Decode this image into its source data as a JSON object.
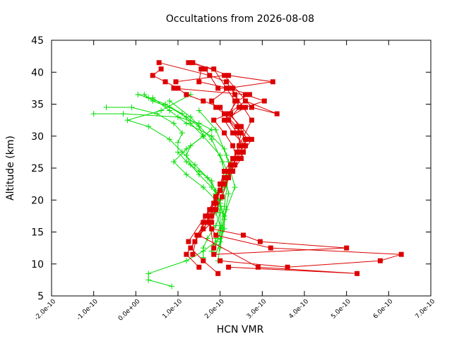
{
  "chart_data": {
    "type": "scatter",
    "title": "Occultations from 2026-08-08",
    "xlabel": "HCN VMR",
    "ylabel": "Altitude (km)",
    "xlim": [
      -2e-10,
      7e-10
    ],
    "ylim": [
      5,
      45
    ],
    "x_ticks": [
      -2e-10,
      -1e-10,
      0,
      1e-10,
      2e-10,
      3e-10,
      4e-10,
      5e-10,
      6e-10,
      7e-10
    ],
    "x_tick_labels": [
      "-2.0e-10",
      "-1.0e-10",
      "0.0e+00",
      "1.0e-10",
      "2.0e-10",
      "3.0e-10",
      "4.0e-10",
      "5.0e-10",
      "6.0e-10",
      "7.0e-10"
    ],
    "y_ticks": [
      5,
      10,
      15,
      20,
      25,
      30,
      35,
      40,
      45
    ],
    "y_tick_labels": [
      "5",
      "10",
      "15",
      "20",
      "25",
      "30",
      "35",
      "40",
      "45"
    ],
    "grid": false,
    "legend": "none",
    "series": [
      {
        "color": "#00dd00",
        "marker": "plus",
        "profiles": [
          {
            "x": [
              8.5e-11,
              3e-11,
              3e-11,
              1.2e-10,
              1.6e-10,
              2e-10,
              2e-10,
              1.9e-10,
              2e-10,
              2.1e-10,
              2.2e-10,
              2.2e-10,
              2.1e-10,
              1.8e-10,
              1.2e-10,
              8e-11,
              4e-11
            ],
            "y": [
              6.5,
              7.5,
              8.5,
              10.5,
              12,
              14,
              16,
              18,
              20,
              22,
              24,
              26,
              28,
              30,
              32,
              34,
              36
            ]
          },
          {
            "x": [
              1.6e-10,
              1.6e-10,
              1.7e-10,
              1.9e-10,
              2e-10,
              2e-10,
              1.8e-10,
              1.5e-10,
              1.3e-10,
              1.2e-10,
              1.3e-10,
              1.6e-10,
              1.8e-10,
              1.5e-10,
              1e-10,
              -3e-11,
              -1e-10
            ],
            "y": [
              11,
              12.5,
              14,
              16,
              18,
              20,
              22,
              24,
              25.5,
              27,
              28.5,
              30,
              31,
              32,
              33,
              33.5,
              33.5
            ]
          },
          {
            "x": [
              1.8e-10,
              1.9e-10,
              2e-10,
              2e-10,
              1.9e-10,
              1.6e-10,
              1.2e-10,
              9e-11,
              1.2e-10,
              1.6e-10,
              1.5e-10,
              1.2e-10,
              8e-11,
              4e-11,
              2e-11
            ],
            "y": [
              12,
              14,
              16,
              18,
              20,
              22,
              24,
              26,
              28,
              30,
              31.5,
              33,
              34.5,
              35.5,
              36.5
            ]
          },
          {
            "x": [
              1.9e-10,
              2e-10,
              2.1e-10,
              2e-10,
              1.9e-10,
              1.8e-10,
              1.5e-10,
              1.2e-10,
              1e-10,
              1e-10,
              1.1e-10,
              9e-11,
              5e-11,
              -1e-11,
              -7e-11
            ],
            "y": [
              13,
              15,
              17,
              19,
              21,
              23,
              24.5,
              26,
              27.5,
              29,
              30.5,
              32,
              33.5,
              34.5,
              34.5
            ]
          },
          {
            "x": [
              1.9e-10,
              2e-10,
              2.1e-10,
              2.1e-10,
              2e-10,
              1.9e-10,
              1.7e-10,
              1.4e-10,
              1.1e-10,
              8e-11,
              3e-11,
              -2e-11,
              6e-11,
              1.3e-10
            ],
            "y": [
              11.5,
              13.5,
              15.5,
              17.5,
              19.5,
              21.5,
              23.5,
              25.5,
              27.5,
              29.5,
              31.5,
              32.5,
              34,
              36.5
            ]
          },
          {
            "x": [
              2e-10,
              2.1e-10,
              2.2e-10,
              2e-10,
              1.6e-10,
              1.3e-10,
              1.1e-10,
              7e-11,
              3e-11,
              5e-12
            ],
            "y": [
              15,
              19,
              24,
              27,
              30,
              32,
              33.5,
              35,
              36,
              36.5
            ]
          },
          {
            "x": [
              1.95e-10,
              2.05e-10,
              2.2e-10,
              2.05e-10,
              1.8e-10,
              1.3e-10,
              8e-11
            ],
            "y": [
              10.5,
              15.5,
              21,
              26,
              29.5,
              33,
              35.5
            ]
          },
          {
            "x": [
              2e-10,
              2.15e-10,
              2.35e-10,
              2.15e-10,
              1.9e-10,
              1.5e-10
            ],
            "y": [
              12.5,
              18.5,
              22,
              27,
              31,
              34
            ]
          }
        ]
      },
      {
        "color": "#dd0000",
        "marker": "square",
        "profiles": [
          {
            "x": [
              1.95e-10,
              1.6e-10,
              1.3e-10,
              1.5e-10,
              1.8e-10,
              1.9e-10,
              1.9e-10,
              2e-10,
              2.1e-10,
              2.3e-10,
              2.5e-10,
              2.4e-10,
              2.2e-10,
              2e-10,
              1.6e-10,
              1.2e-10,
              1e-10,
              7e-11,
              4e-11,
              6e-11
            ],
            "y": [
              8.5,
              10.5,
              12.5,
              14.5,
              16.5,
              18.5,
              20.5,
              22.5,
              24.5,
              26.5,
              28.5,
              30.5,
              32.5,
              34.5,
              35.5,
              36.5,
              37.5,
              38.5,
              39.5,
              40.5
            ]
          },
          {
            "x": [
              1.5e-10,
              1.2e-10,
              1.4e-10,
              1.6e-10,
              1.8e-10,
              1.9e-10,
              2e-10,
              2.1e-10,
              2.3e-10,
              2.5e-10,
              2.6e-10,
              2.4e-10,
              2.1e-10,
              1.9e-10,
              1.8e-10,
              2.2e-10,
              3.25e-10,
              2.2e-10,
              1.35e-10
            ],
            "y": [
              9.5,
              11.5,
              13.5,
              15.5,
              17.5,
              19.5,
              21.5,
              23.5,
              25.5,
              27.5,
              29.5,
              31.5,
              33.5,
              34.5,
              35.5,
              37.5,
              38.5,
              39.5,
              41.5
            ]
          },
          {
            "x": [
              2e-10,
              3.6e-10,
              5.8e-10,
              6.3e-10,
              3.2e-10,
              1.9e-10,
              1.7e-10,
              1.8e-10,
              1.9e-10,
              2.1e-10,
              2.3e-10,
              2.5e-10,
              2.6e-10,
              2.3e-10,
              2.1e-10,
              2.6e-10,
              3.05e-10,
              2.6e-10,
              9e-11
            ],
            "y": [
              10.5,
              9.5,
              10.5,
              11.5,
              12.5,
              14.5,
              16.5,
              18.5,
              20.5,
              22.5,
              24.5,
              26.5,
              28.5,
              30.5,
              32.5,
              34.5,
              35.5,
              36.5,
              37.5
            ]
          },
          {
            "x": [
              2.2e-10,
              5.25e-10,
              2.9e-10,
              1.5e-10,
              1.6e-10,
              1.75e-10,
              1.9e-10,
              2e-10,
              2.2e-10,
              2.4e-10,
              2.3e-10,
              2.1e-10,
              1.85e-10,
              2.2e-10,
              2.6e-10,
              3.35e-10,
              2.75e-10,
              2.1e-10,
              9.5e-11
            ],
            "y": [
              9.5,
              8.5,
              9.5,
              14.5,
              16.5,
              18.5,
              20.5,
              22.5,
              24.5,
              26.5,
              28.5,
              30.5,
              32.5,
              33.5,
              35.5,
              33.5,
              34.5,
              39.5,
              38.5
            ]
          },
          {
            "x": [
              1.85e-10,
              5e-10,
              2.95e-10,
              2.55e-10,
              1.8e-10,
              1.7e-10,
              1.85e-10,
              2e-10,
              2.15e-10,
              2.35e-10,
              2.55e-10,
              2.75e-10,
              2.5e-10,
              2.2e-10,
              2.4e-10,
              2.7e-10,
              2.2e-10,
              1.5e-10,
              1.55e-10
            ],
            "y": [
              11.5,
              12.5,
              13.5,
              14.5,
              15.5,
              17.5,
              19.5,
              21.5,
              23.5,
              25.5,
              27.5,
              29.5,
              31.5,
              33.5,
              35.5,
              36.5,
              37.5,
              38.5,
              40.5
            ]
          },
          {
            "x": [
              1.85e-10,
              1.75e-10,
              2.05e-10,
              2.25e-10,
              2.45e-10,
              2.65e-10,
              2.45e-10,
              2.25e-10,
              2.35e-10,
              2.15e-10,
              1.85e-10,
              1.25e-10
            ],
            "y": [
              12.5,
              16.5,
              20.5,
              24.5,
              27.5,
              29.5,
              31.5,
              33.5,
              35.5,
              37.5,
              40.5,
              41.5
            ]
          },
          {
            "x": [
              1.35e-10,
              1.45e-10,
              1.85e-10,
              2.05e-10,
              2.25e-10,
              2.45e-10,
              2.75e-10,
              2.55e-10,
              2.35e-10,
              2.15e-10,
              1.75e-10,
              5.5e-11
            ],
            "y": [
              11.5,
              14.5,
              18.5,
              22.5,
              25.5,
              28.5,
              32.5,
              34.5,
              36.5,
              38.5,
              39.5,
              41.5
            ]
          },
          {
            "x": [
              1.25e-10,
              1.65e-10,
              2e-10,
              2.2e-10,
              2.4e-10,
              2.5e-10,
              2.2e-10,
              2.45e-10,
              2.3e-10,
              1.95e-10,
              1.65e-10
            ],
            "y": [
              13.5,
              17.5,
              21.5,
              23.5,
              27.5,
              30.5,
              32.5,
              34.5,
              37.5,
              37.5,
              40.5
            ]
          }
        ]
      }
    ]
  }
}
